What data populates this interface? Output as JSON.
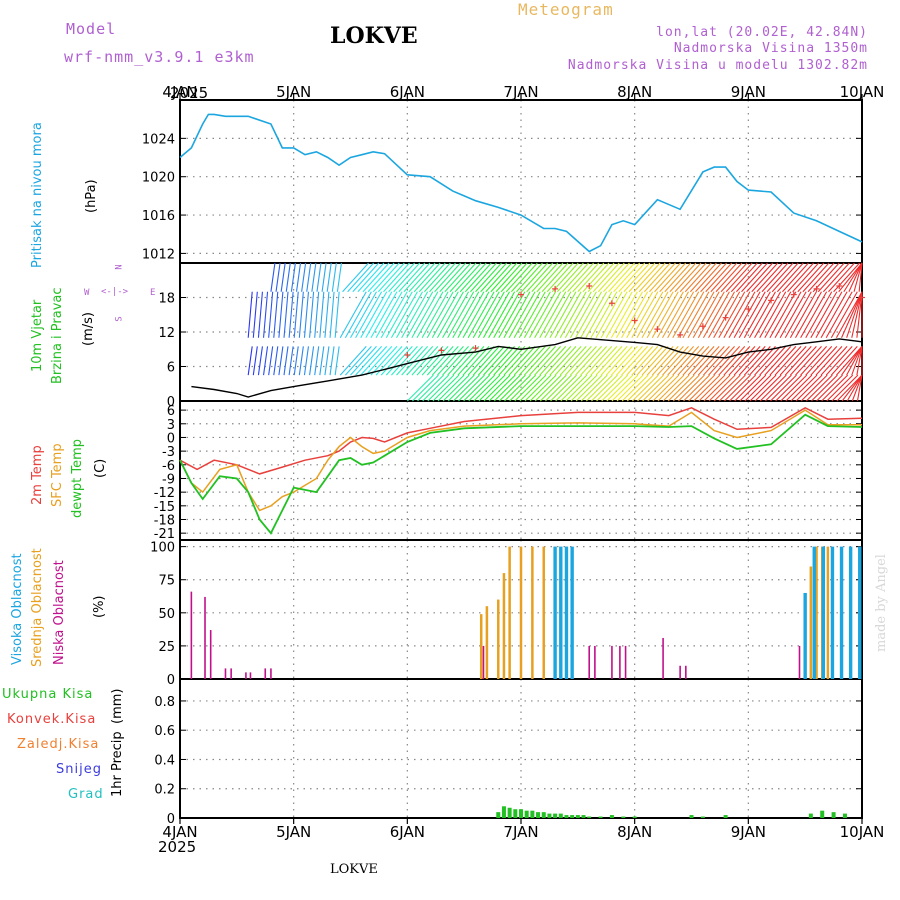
{
  "header": {
    "model_label": "Model",
    "model_name": "wrf-nmm_v3.9.1 e3km",
    "station": "LOKVE",
    "title": "Meteogram",
    "coords": "lon,lat (20.02E, 42.84N)",
    "elevation": "Nadmorska Visina 1350m",
    "model_elevation": "Nadmorska Visina u modelu 1302.82m",
    "year_top": "2025",
    "year_bottom": "2025",
    "footer_station": "LOKVE",
    "credit": "made by Angel"
  },
  "colors": {
    "pressure": "#1ca6e0",
    "temp2m": "#e8403c",
    "sfc": "#e8a020",
    "dewpt": "#22c022",
    "high_cloud": "#1ca6e0",
    "mid_cloud": "#e8a020",
    "low_cloud": "#c0108c",
    "model_text": "#b060d0",
    "title_text": "#e8b860",
    "snow": "#3c3cdc",
    "hail": "#20c0c0"
  },
  "chart_data": [
    {
      "type": "line",
      "id": "pressure",
      "ylabel": "Pritisak na nivou mora",
      "unit": "(hPa)",
      "x_labels": [
        "4JAN",
        "5JAN",
        "6JAN",
        "7JAN",
        "8JAN",
        "9JAN",
        "10JAN"
      ],
      "yticks": [
        1012,
        1016,
        1020,
        1024
      ],
      "ylim": [
        1011,
        1028
      ],
      "series": [
        {
          "name": "Pritisak",
          "x": [
            0,
            0.1,
            0.2,
            0.25,
            0.3,
            0.4,
            0.6,
            0.8,
            0.9,
            1.0,
            1.1,
            1.2,
            1.3,
            1.4,
            1.5,
            1.6,
            1.7,
            1.8,
            2.0,
            2.2,
            2.4,
            2.5,
            2.6,
            2.8,
            3.0,
            3.2,
            3.3,
            3.4,
            3.6,
            3.7,
            3.8,
            3.9,
            4.0,
            4.2,
            4.4,
            4.6,
            4.7,
            4.8,
            4.9,
            5.0,
            5.2,
            5.4,
            5.6,
            5.8,
            6.0
          ],
          "values": [
            1022,
            1023,
            1025.5,
            1026.5,
            1026.5,
            1026.3,
            1026.3,
            1025.5,
            1023,
            1023,
            1022.3,
            1022.6,
            1022,
            1021.2,
            1022,
            1022.3,
            1022.6,
            1022.4,
            1020.2,
            1020,
            1018.5,
            1018,
            1017.5,
            1016.8,
            1016,
            1014.6,
            1014.6,
            1014.3,
            1012.2,
            1012.8,
            1015,
            1015.4,
            1015,
            1017.6,
            1016.6,
            1020.5,
            1021,
            1021,
            1019.5,
            1018.6,
            1018.4,
            1016.2,
            1015.4,
            1014.3,
            1013.2
          ]
        }
      ]
    },
    {
      "type": "line",
      "id": "wind",
      "ylabel": "10m Vjetar",
      "ylabel2": "Brzina i Pravac",
      "unit": "(m/s)",
      "yticks": [
        0,
        6,
        12,
        18
      ],
      "ylim": [
        0,
        24
      ],
      "compass": [
        "N",
        "W",
        "E",
        "S"
      ],
      "series": [
        {
          "name": "Brzina",
          "x": [
            0.1,
            0.3,
            0.5,
            0.6,
            0.8,
            1.0,
            1.3,
            1.6,
            1.8,
            2.0,
            2.3,
            2.6,
            2.8,
            3.0,
            3.3,
            3.5,
            3.8,
            4.0,
            4.2,
            4.4,
            4.6,
            4.8,
            5.0,
            5.2,
            5.4,
            5.6,
            5.8,
            6.0
          ],
          "values": [
            2.5,
            2.0,
            1.3,
            0.7,
            1.8,
            2.5,
            3.5,
            4.5,
            5.5,
            6.5,
            8,
            8.5,
            9.5,
            9.0,
            9.8,
            11,
            10.5,
            10.2,
            9.8,
            8.5,
            7.8,
            7.5,
            8.5,
            9,
            9.8,
            10.3,
            10.8,
            10.3
          ]
        }
      ]
    },
    {
      "type": "line",
      "id": "temperature",
      "ylabel": "2m Temp",
      "ylabel2": "SFC Temp",
      "ylabel3": "dewpt Temp",
      "unit": "(C)",
      "yticks": [
        6,
        3,
        0,
        -3,
        -6,
        -9,
        -12,
        -15,
        -18,
        -21
      ],
      "ylim": [
        -22.5,
        8
      ],
      "series": [
        {
          "name": "2m Temp",
          "x": [
            0,
            0.15,
            0.3,
            0.5,
            0.7,
            0.9,
            1.1,
            1.3,
            1.4,
            1.5,
            1.6,
            1.7,
            1.8,
            2.0,
            2.2,
            2.5,
            3.0,
            3.5,
            4.0,
            4.3,
            4.5,
            4.7,
            4.9,
            5.2,
            5.5,
            5.7,
            6.0
          ],
          "values": [
            -5,
            -7,
            -5,
            -6,
            -8,
            -6.5,
            -5,
            -4,
            -3,
            -1,
            0,
            -0.2,
            -1,
            1,
            2,
            3.5,
            4.8,
            5.5,
            5.5,
            4.8,
            6.5,
            4,
            1.8,
            2.2,
            6.5,
            4,
            4.2
          ]
        },
        {
          "name": "SFC Temp",
          "x": [
            0,
            0.1,
            0.2,
            0.35,
            0.5,
            0.6,
            0.7,
            0.8,
            0.9,
            1.0,
            1.2,
            1.3,
            1.4,
            1.5,
            1.6,
            1.7,
            1.8,
            2.0,
            2.2,
            2.5,
            3.0,
            3.5,
            4.0,
            4.3,
            4.5,
            4.7,
            4.9,
            5.2,
            5.5,
            5.7,
            6.0
          ],
          "values": [
            -5,
            -10,
            -12,
            -7,
            -6,
            -12,
            -16,
            -15,
            -13,
            -12,
            -9,
            -5,
            -2,
            0,
            -2,
            -3.5,
            -3,
            0,
            1.5,
            2.5,
            3,
            3.2,
            3,
            2.5,
            5.5,
            1.5,
            0,
            1.5,
            6,
            2.8,
            2.8
          ]
        },
        {
          "name": "dewpt Temp",
          "x": [
            0,
            0.1,
            0.2,
            0.35,
            0.5,
            0.6,
            0.7,
            0.8,
            0.9,
            1.0,
            1.2,
            1.3,
            1.4,
            1.5,
            1.6,
            1.7,
            1.8,
            2.0,
            2.2,
            2.5,
            3.0,
            3.5,
            4.0,
            4.3,
            4.5,
            4.7,
            4.9,
            5.2,
            5.5,
            5.7,
            6.0
          ],
          "values": [
            -5,
            -10,
            -13.5,
            -8.5,
            -9,
            -12,
            -18,
            -21,
            -16,
            -11,
            -12,
            -8.5,
            -5,
            -4.5,
            -6,
            -5.5,
            -4,
            -1,
            1,
            2,
            2.5,
            2.5,
            2.5,
            2.3,
            2.5,
            -0.2,
            -2.5,
            -1.5,
            5,
            2.5,
            2.3
          ]
        }
      ]
    },
    {
      "type": "bar",
      "id": "cloud",
      "ylabel": "Visoka Oblacnost",
      "ylabel2": "Srednja Oblacnost",
      "ylabel3": "Niska Oblacnost",
      "unit": "(%)",
      "yticks": [
        0,
        25,
        50,
        75,
        100
      ],
      "ylim": [
        0,
        105
      ],
      "series": [
        {
          "name": "Niska",
          "x": [
            0.1,
            0.22,
            0.27,
            0.4,
            0.45,
            0.58,
            0.62,
            0.75,
            0.8,
            2.67,
            3.6,
            3.65,
            3.8,
            3.87,
            3.92,
            4.25,
            4.4,
            4.45,
            5.45
          ],
          "values": [
            66,
            62,
            37,
            8,
            8,
            5,
            5,
            8,
            8,
            25,
            25,
            25,
            25,
            25,
            25,
            31,
            10,
            10,
            25
          ]
        },
        {
          "name": "Srednja",
          "x": [
            2.65,
            2.7,
            2.8,
            2.85,
            2.9,
            3.0,
            3.1,
            3.2,
            3.3,
            3.4,
            5.55,
            5.6,
            5.65,
            5.7
          ],
          "values": [
            49,
            55,
            60,
            80,
            100,
            100,
            100,
            100,
            100,
            100,
            85,
            100,
            100,
            100
          ]
        },
        {
          "name": "Visoka",
          "x": [
            3.3,
            3.35,
            3.4,
            3.45,
            5.5,
            5.58,
            5.66,
            5.74,
            5.82,
            5.9,
            5.98
          ],
          "values": [
            100,
            100,
            100,
            100,
            65,
            100,
            100,
            100,
            100,
            100,
            100
          ]
        }
      ]
    },
    {
      "type": "bar",
      "id": "precip",
      "ylabel": "1hr Precip",
      "unit": "(mm)",
      "legend": [
        "Ukupna Kisa",
        "Konvek.Kisa",
        "Zaledj.Kisa",
        "Snijeg",
        "Grad"
      ],
      "yticks": [
        0,
        0.2,
        0.4,
        0.6,
        0.8
      ],
      "ylim": [
        0,
        0.95
      ],
      "series": [
        {
          "name": "Ukupna Kisa",
          "x": [
            2.8,
            2.85,
            2.9,
            2.95,
            3.0,
            3.05,
            3.1,
            3.15,
            3.2,
            3.25,
            3.3,
            3.35,
            3.4,
            3.45,
            3.5,
            3.55,
            3.6,
            3.7,
            3.8,
            3.9,
            4.0,
            4.5,
            4.6,
            4.8,
            5.55,
            5.65,
            5.75,
            5.85
          ],
          "values": [
            0.04,
            0.08,
            0.07,
            0.06,
            0.06,
            0.05,
            0.05,
            0.04,
            0.04,
            0.03,
            0.03,
            0.03,
            0.02,
            0.02,
            0.02,
            0.02,
            0.01,
            0.01,
            0.02,
            0.01,
            0.01,
            0.02,
            0.01,
            0.02,
            0.03,
            0.05,
            0.04,
            0.03
          ]
        }
      ]
    }
  ]
}
